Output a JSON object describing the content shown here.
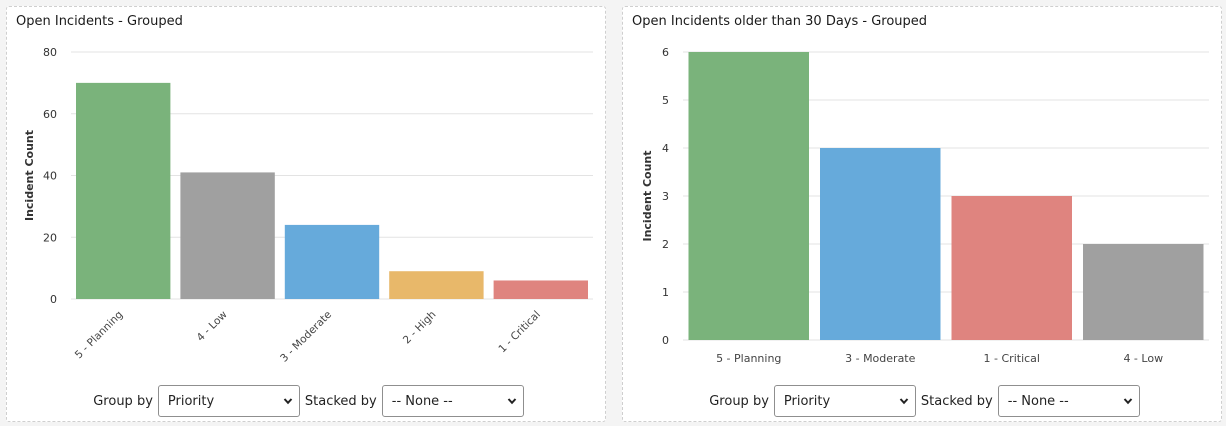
{
  "panels": [
    {
      "title": "Open Incidents - Grouped",
      "group_by_label": "Group by",
      "group_by_value": "Priority",
      "stacked_by_label": "Stacked by",
      "stacked_by_value": "-- None --"
    },
    {
      "title": "Open Incidents older than 30 Days - Grouped",
      "group_by_label": "Group by",
      "group_by_value": "Priority",
      "stacked_by_label": "Stacked by",
      "stacked_by_value": "-- None --"
    }
  ],
  "icons": {
    "dropdown": "chevron-down-icon"
  },
  "chart_data": [
    {
      "type": "bar",
      "title": "Open Incidents - Grouped",
      "ylabel": "Incident Count",
      "xlabel": "",
      "categories": [
        "5 - Planning",
        "4 - Low",
        "3 - Moderate",
        "2 - High",
        "1 - Critical"
      ],
      "values": [
        70,
        41,
        24,
        9,
        6
      ],
      "colors": [
        "#7ab37b",
        "#a0a0a0",
        "#66aadb",
        "#e8b86a",
        "#df847f"
      ],
      "ylim": [
        0,
        80
      ],
      "yticks": [
        0,
        20,
        40,
        60,
        80
      ],
      "grid": true,
      "xtick_rotation": -45
    },
    {
      "type": "bar",
      "title": "Open Incidents older than 30 Days - Grouped",
      "ylabel": "Incident Count",
      "xlabel": "",
      "categories": [
        "5 - Planning",
        "3 - Moderate",
        "1 - Critical",
        "4 - Low"
      ],
      "values": [
        6,
        4,
        3,
        2
      ],
      "colors": [
        "#7ab37b",
        "#66aadb",
        "#df847f",
        "#a0a0a0"
      ],
      "ylim": [
        0,
        6
      ],
      "yticks": [
        0,
        1,
        2,
        3,
        4,
        5,
        6
      ],
      "grid": true,
      "xtick_rotation": 0
    }
  ]
}
